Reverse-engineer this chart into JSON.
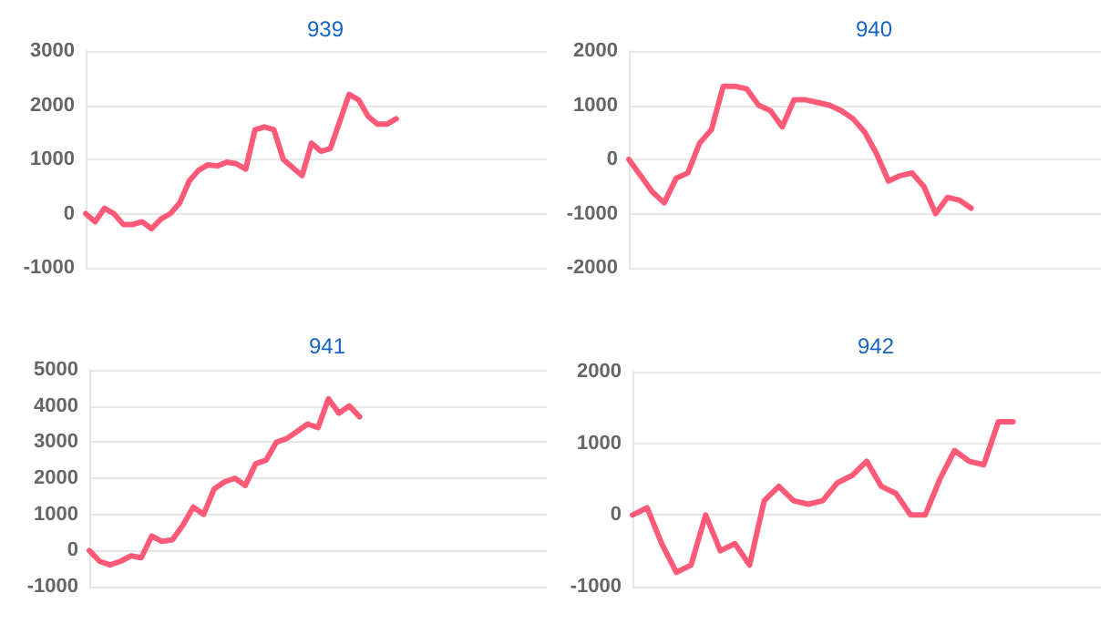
{
  "chart_data": [
    {
      "type": "line",
      "title": "939",
      "categories": [
        null,
        null,
        null,
        null,
        null,
        null,
        null,
        null,
        null,
        null,
        null,
        null,
        null,
        null,
        null,
        null,
        null,
        null,
        null,
        null,
        null,
        null,
        null,
        null,
        null,
        null,
        null,
        null,
        null,
        null,
        null,
        null,
        null,
        null,
        null,
        null,
        null,
        null,
        null,
        null,
        null,
        null,
        null,
        null,
        null,
        null,
        null,
        null,
        null,
        null
      ],
      "series": [
        {
          "color": "#ff5a78",
          "values": [
            0,
            -150,
            100,
            0,
            -200,
            -200,
            -150,
            -280,
            -100,
            0,
            200,
            600,
            800,
            900,
            880,
            950,
            920,
            820,
            1550,
            1600,
            1550,
            1000,
            850,
            700,
            1300,
            1150,
            1200,
            1700,
            2200,
            2100,
            1800,
            1650,
            1650,
            1750,
            null,
            null,
            null,
            null,
            null,
            null,
            null,
            null,
            null,
            null,
            null,
            null,
            null,
            null,
            null,
            null
          ]
        }
      ],
      "ylim": [
        -1000,
        3000
      ],
      "yticks": [
        -1000,
        0,
        1000,
        2000,
        3000
      ],
      "grid": "y",
      "tick_labels": "y",
      "line_style": "solid"
    },
    {
      "type": "line",
      "title": "940",
      "categories": [
        null,
        null,
        null,
        null,
        null,
        null,
        null,
        null,
        null,
        null,
        null,
        null,
        null,
        null,
        null,
        null,
        null,
        null,
        null,
        null,
        null,
        null,
        null,
        null,
        null,
        null,
        null,
        null,
        null,
        null,
        null,
        null,
        null,
        null,
        null,
        null,
        null,
        null,
        null,
        null,
        null
      ],
      "series": [
        {
          "color": "#ff5a78",
          "values": [
            0,
            -300,
            -600,
            -800,
            -350,
            -250,
            300,
            550,
            1350,
            1350,
            1300,
            1000,
            900,
            600,
            1100,
            1100,
            1050,
            1000,
            900,
            750,
            500,
            100,
            -400,
            -300,
            -250,
            -500,
            -1000,
            -700,
            -750,
            -900,
            null,
            null,
            null,
            null,
            null,
            null,
            null,
            null,
            null,
            null,
            null
          ]
        }
      ],
      "ylim": [
        -2000,
        2000
      ],
      "yticks": [
        -2000,
        -1000,
        0,
        1000,
        2000
      ],
      "grid": "y",
      "tick_labels": "y",
      "line_style": "solid"
    },
    {
      "type": "line",
      "title": "941",
      "categories": [
        null,
        null,
        null,
        null,
        null,
        null,
        null,
        null,
        null,
        null,
        null,
        null,
        null,
        null,
        null,
        null,
        null,
        null,
        null,
        null,
        null,
        null,
        null,
        null,
        null,
        null,
        null,
        null,
        null,
        null,
        null,
        null,
        null,
        null,
        null,
        null,
        null,
        null,
        null,
        null,
        null,
        null,
        null,
        null,
        null
      ],
      "series": [
        {
          "color": "#ff5a78",
          "values": [
            0,
            -300,
            -400,
            -300,
            -150,
            -200,
            400,
            250,
            300,
            700,
            1200,
            1000,
            1700,
            1900,
            2000,
            1800,
            2400,
            2500,
            3000,
            3100,
            3300,
            3500,
            3400,
            4200,
            3800,
            4000,
            3700,
            null,
            null,
            null,
            null,
            null,
            null,
            null,
            null,
            null,
            null,
            null,
            null,
            null,
            null,
            null,
            null,
            null,
            null
          ]
        }
      ],
      "ylim": [
        -1000,
        5000
      ],
      "yticks": [
        -1000,
        0,
        1000,
        2000,
        3000,
        4000,
        5000
      ],
      "grid": "y",
      "tick_labels": "y",
      "line_style": "solid"
    },
    {
      "type": "line",
      "title": "942",
      "categories": [
        null,
        null,
        null,
        null,
        null,
        null,
        null,
        null,
        null,
        null,
        null,
        null,
        null,
        null,
        null,
        null,
        null,
        null,
        null,
        null,
        null,
        null,
        null,
        null,
        null,
        null,
        null,
        null,
        null,
        null,
        null,
        null,
        null
      ],
      "series": [
        {
          "color": "#ff5a78",
          "values": [
            0,
            100,
            -400,
            -800,
            -700,
            0,
            -500,
            -400,
            -700,
            200,
            400,
            200,
            150,
            200,
            450,
            550,
            750,
            400,
            300,
            0,
            0,
            500,
            900,
            750,
            700,
            1300,
            1300,
            null,
            null,
            null,
            null,
            null,
            null
          ]
        }
      ],
      "ylim": [
        -1000,
        2000
      ],
      "yticks": [
        -1000,
        0,
        1000,
        2000
      ],
      "grid": "y",
      "tick_labels": "y",
      "line_style": "solid"
    }
  ]
}
